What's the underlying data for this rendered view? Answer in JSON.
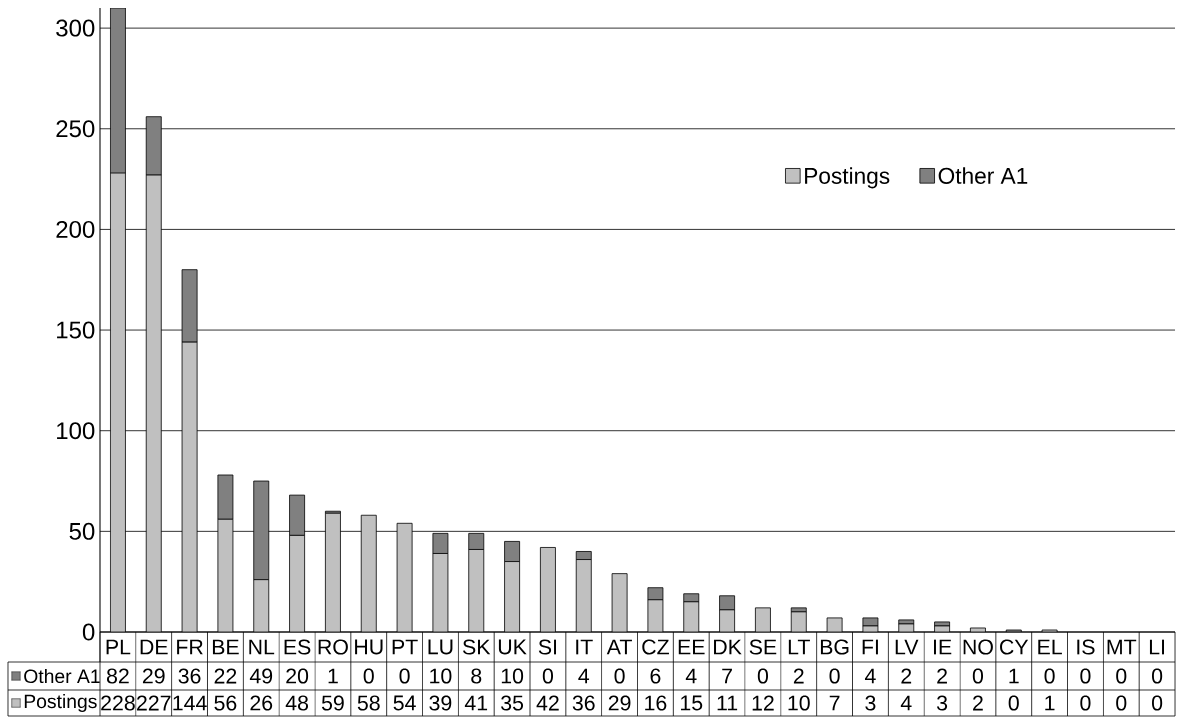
{
  "chart_data": {
    "type": "bar",
    "stacked": true,
    "categories": [
      "PL",
      "DE",
      "FR",
      "BE",
      "NL",
      "ES",
      "RO",
      "HU",
      "PT",
      "LU",
      "SK",
      "UK",
      "SI",
      "IT",
      "AT",
      "CZ",
      "EE",
      "DK",
      "SE",
      "LT",
      "BG",
      "FI",
      "LV",
      "IE",
      "NO",
      "CY",
      "EL",
      "IS",
      "MT",
      "LI"
    ],
    "series": [
      {
        "name": "Postings",
        "color": "#c0c0c0",
        "values": [
          228,
          227,
          144,
          56,
          26,
          48,
          59,
          58,
          54,
          39,
          41,
          35,
          42,
          36,
          29,
          16,
          15,
          11,
          12,
          10,
          7,
          3,
          4,
          3,
          2,
          0,
          1,
          0,
          0,
          0
        ]
      },
      {
        "name": "Other A1",
        "color": "#808080",
        "values": [
          82,
          29,
          36,
          22,
          49,
          20,
          1,
          0,
          0,
          10,
          8,
          10,
          0,
          4,
          0,
          6,
          4,
          7,
          0,
          2,
          0,
          4,
          2,
          2,
          0,
          1,
          0,
          0,
          0,
          0
        ]
      }
    ],
    "ylim": [
      0,
      310
    ],
    "yticks": [
      0,
      50,
      100,
      150,
      200,
      250,
      300
    ],
    "grid": "y",
    "legend": "top right",
    "data_labels": true
  }
}
